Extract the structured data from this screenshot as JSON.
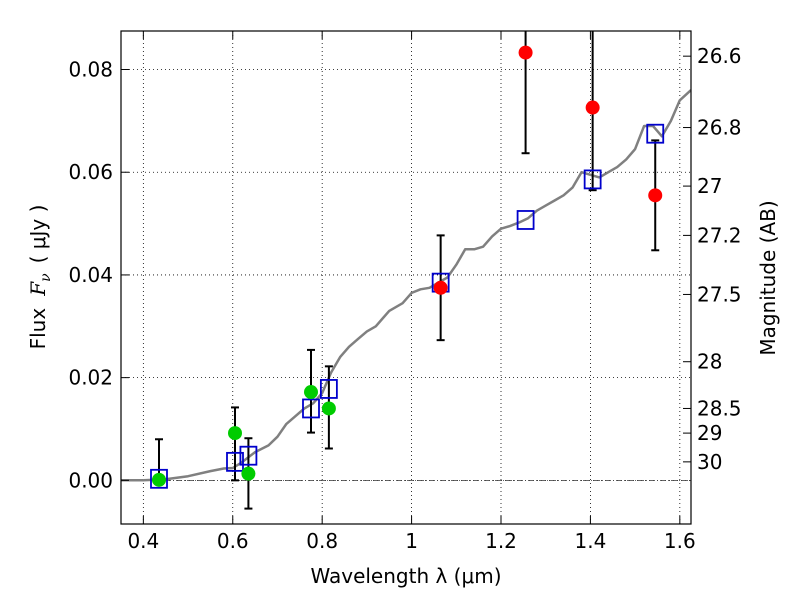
{
  "chart_data": {
    "type": "scatter",
    "xlabel": "Wavelength  λ (μm)",
    "ylabel_text": "Flux",
    "ylabel_symbol": "F",
    "ylabel_subscript": "ν",
    "ylabel_units": "( μJy )",
    "y2label": "Magnitude (AB)",
    "xlim": [
      0.35,
      1.625
    ],
    "ylim": [
      -0.0085,
      0.0875
    ],
    "grid": true,
    "xticks": [
      0.4,
      0.6,
      0.8,
      1.0,
      1.2,
      1.4,
      1.6
    ],
    "xtick_labels": [
      "0.4",
      "0.6",
      "0.8",
      "1",
      "1.2",
      "1.4",
      "1.6"
    ],
    "yticks": [
      0.0,
      0.02,
      0.04,
      0.06,
      0.08
    ],
    "ytick_labels": [
      "0.00",
      "0.02",
      "0.04",
      "0.06",
      "0.08"
    ],
    "right_ticks": [
      {
        "label": "26.6",
        "flux": 0.0826
      },
      {
        "label": "26.8",
        "flux": 0.0687
      },
      {
        "label": "27",
        "flux": 0.0573
      },
      {
        "label": "27.2",
        "flux": 0.0477
      },
      {
        "label": "27.5",
        "flux": 0.0362
      },
      {
        "label": "28",
        "flux": 0.0231
      },
      {
        "label": "28.5",
        "flux": 0.014
      },
      {
        "label": "29",
        "flux": 0.0092
      },
      {
        "label": "30",
        "flux": 0.0036
      }
    ],
    "series": [
      {
        "kind": "model-line",
        "color": "#808080",
        "points": [
          [
            0.35,
            0.0
          ],
          [
            0.4,
            0.0
          ],
          [
            0.45,
            0.0002
          ],
          [
            0.5,
            0.0008
          ],
          [
            0.55,
            0.0018
          ],
          [
            0.58,
            0.0023
          ],
          [
            0.6,
            0.0024
          ],
          [
            0.62,
            0.0035
          ],
          [
            0.65,
            0.0055
          ],
          [
            0.68,
            0.0068
          ],
          [
            0.7,
            0.0085
          ],
          [
            0.72,
            0.011
          ],
          [
            0.74,
            0.0125
          ],
          [
            0.76,
            0.014
          ],
          [
            0.78,
            0.015
          ],
          [
            0.8,
            0.017
          ],
          [
            0.82,
            0.021
          ],
          [
            0.84,
            0.024
          ],
          [
            0.86,
            0.026
          ],
          [
            0.88,
            0.0275
          ],
          [
            0.9,
            0.029
          ],
          [
            0.92,
            0.03
          ],
          [
            0.95,
            0.033
          ],
          [
            0.98,
            0.0345
          ],
          [
            1.0,
            0.0365
          ],
          [
            1.02,
            0.0372
          ],
          [
            1.04,
            0.0375
          ],
          [
            1.06,
            0.0385
          ],
          [
            1.08,
            0.0395
          ],
          [
            1.1,
            0.042
          ],
          [
            1.12,
            0.045
          ],
          [
            1.14,
            0.045
          ],
          [
            1.16,
            0.0455
          ],
          [
            1.18,
            0.0475
          ],
          [
            1.2,
            0.049
          ],
          [
            1.22,
            0.0495
          ],
          [
            1.24,
            0.0502
          ],
          [
            1.26,
            0.051
          ],
          [
            1.28,
            0.0525
          ],
          [
            1.3,
            0.0535
          ],
          [
            1.32,
            0.0545
          ],
          [
            1.34,
            0.0555
          ],
          [
            1.36,
            0.057
          ],
          [
            1.38,
            0.06
          ],
          [
            1.4,
            0.0595
          ],
          [
            1.42,
            0.059
          ],
          [
            1.44,
            0.06
          ],
          [
            1.46,
            0.061
          ],
          [
            1.48,
            0.0625
          ],
          [
            1.5,
            0.0645
          ],
          [
            1.52,
            0.069
          ],
          [
            1.54,
            0.069
          ],
          [
            1.56,
            0.067
          ],
          [
            1.58,
            0.07
          ],
          [
            1.6,
            0.074
          ],
          [
            1.625,
            0.076
          ]
        ]
      },
      {
        "kind": "model-bandpass",
        "color": "#0000cc",
        "marker": "open-square",
        "points": [
          [
            0.435,
            0.0003
          ],
          [
            0.605,
            0.0036
          ],
          [
            0.635,
            0.0048
          ],
          [
            0.775,
            0.014
          ],
          [
            0.815,
            0.0178
          ],
          [
            1.065,
            0.0385
          ],
          [
            1.255,
            0.0507
          ],
          [
            1.405,
            0.0586
          ],
          [
            1.545,
            0.0675
          ]
        ]
      },
      {
        "kind": "observed-optical",
        "color": "#00cc00",
        "marker": "filled-circle",
        "points": [
          {
            "x": 0.435,
            "y": 0.0001,
            "yerr_lo": 0.0001,
            "yerr_hi": 0.008
          },
          {
            "x": 0.605,
            "y": 0.0092,
            "yerr_lo": 0.0,
            "yerr_hi": 0.0142
          },
          {
            "x": 0.635,
            "y": 0.0013,
            "yerr_lo": -0.0055,
            "yerr_hi": 0.0082
          },
          {
            "x": 0.775,
            "y": 0.0172,
            "yerr_lo": 0.0093,
            "yerr_hi": 0.0254
          },
          {
            "x": 0.815,
            "y": 0.014,
            "yerr_lo": 0.0062,
            "yerr_hi": 0.0222
          }
        ]
      },
      {
        "kind": "observed-nir",
        "color": "#ff0000",
        "marker": "filled-circle",
        "points": [
          {
            "x": 1.065,
            "y": 0.0375,
            "yerr_lo": 0.0273,
            "yerr_hi": 0.0477
          },
          {
            "x": 1.255,
            "y": 0.0833,
            "yerr_lo": 0.0637,
            "yerr_hi": 0.089
          },
          {
            "x": 1.405,
            "y": 0.0726,
            "yerr_lo": 0.0565,
            "yerr_hi": 0.089
          },
          {
            "x": 1.545,
            "y": 0.0555,
            "yerr_lo": 0.0448,
            "yerr_hi": 0.0662
          }
        ]
      }
    ]
  }
}
